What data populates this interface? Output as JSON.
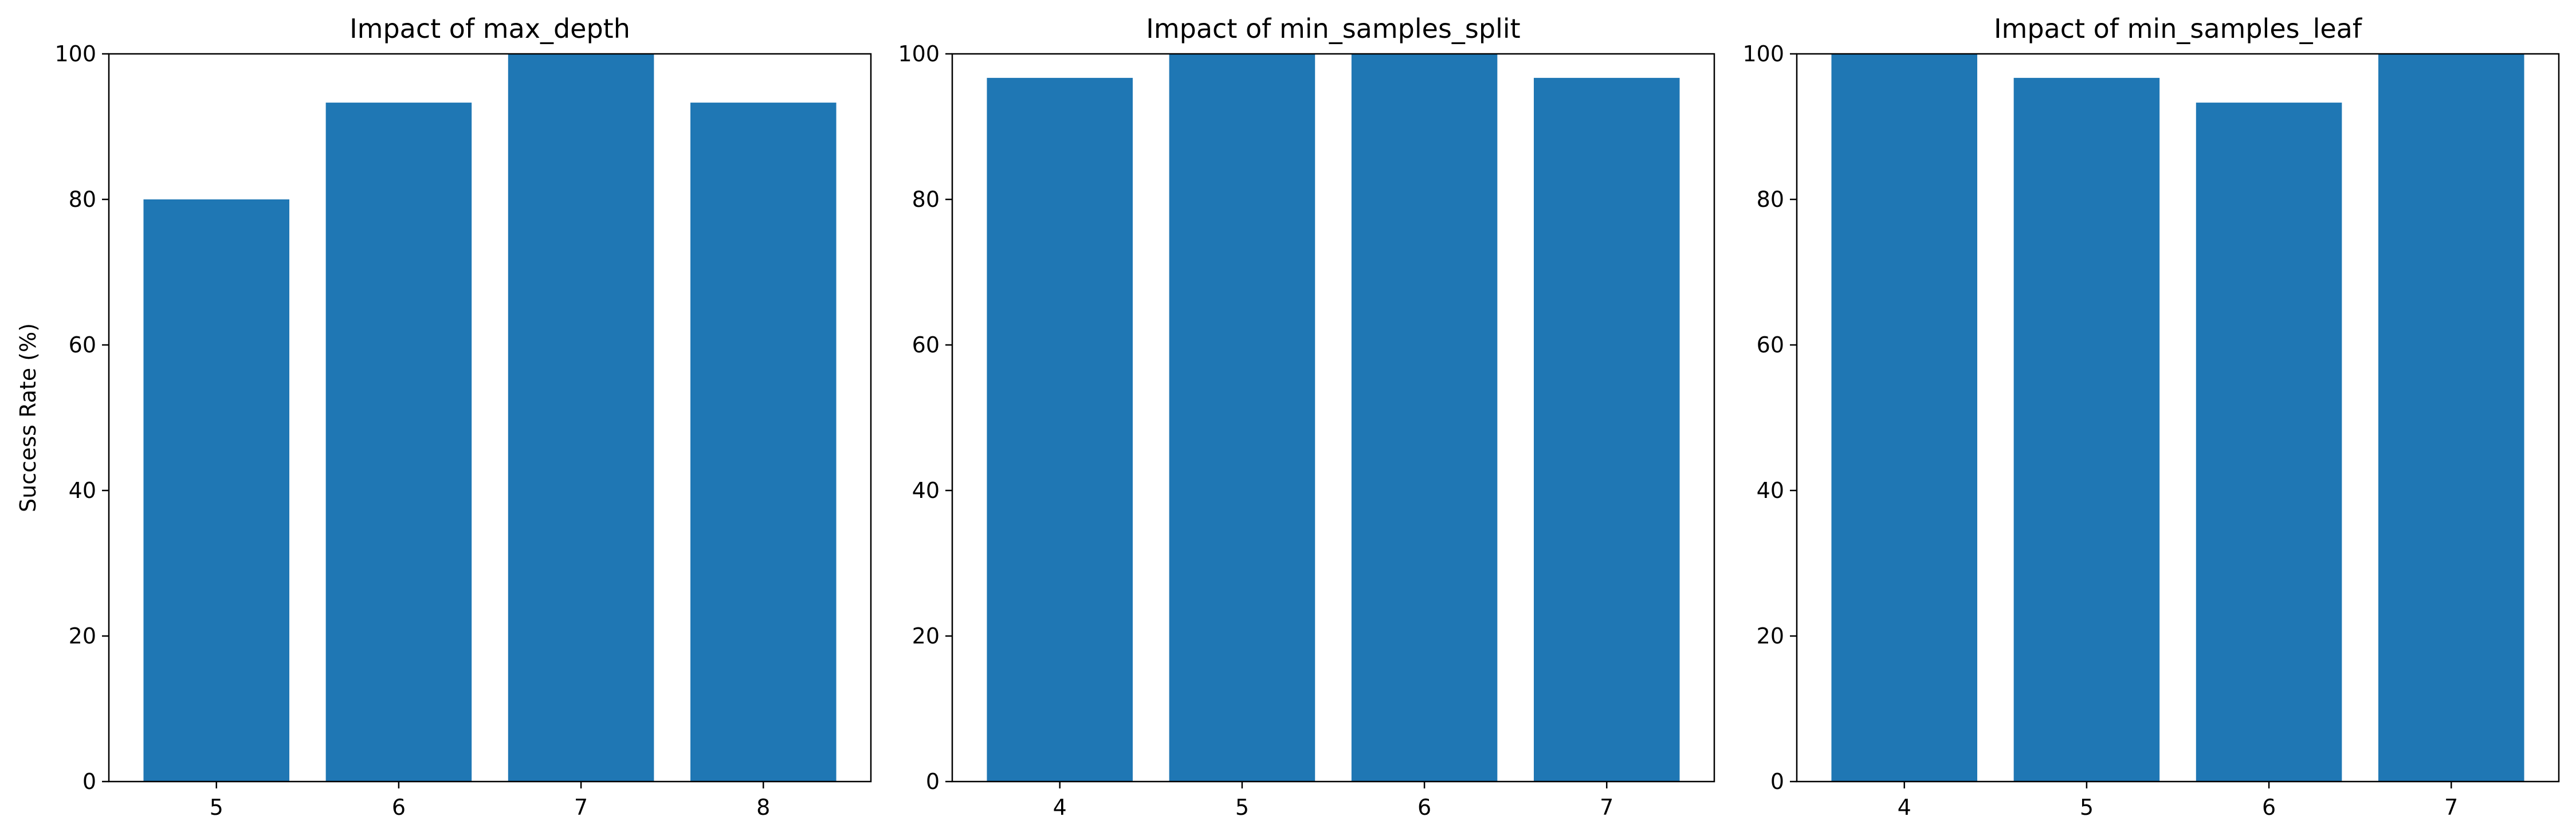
{
  "chart_data": [
    {
      "type": "bar",
      "title": "Impact of max_depth",
      "xlabel": "",
      "ylabel": "Success Rate (%)",
      "categories": [
        "5",
        "6",
        "7",
        "8"
      ],
      "values": [
        80,
        93.3,
        100,
        93.3
      ],
      "ylim": [
        0,
        100
      ],
      "yticks": [
        0,
        20,
        40,
        60,
        80,
        100
      ],
      "color": "#1f77b4",
      "grid": false
    },
    {
      "type": "bar",
      "title": "Impact of min_samples_split",
      "xlabel": "",
      "ylabel": "",
      "categories": [
        "4",
        "5",
        "6",
        "7"
      ],
      "values": [
        96.7,
        100,
        100,
        96.7
      ],
      "ylim": [
        0,
        100
      ],
      "yticks": [
        0,
        20,
        40,
        60,
        80,
        100
      ],
      "color": "#1f77b4",
      "grid": false
    },
    {
      "type": "bar",
      "title": "Impact of min_samples_leaf",
      "xlabel": "",
      "ylabel": "",
      "categories": [
        "4",
        "5",
        "6",
        "7"
      ],
      "values": [
        100,
        96.7,
        93.3,
        100
      ],
      "ylim": [
        0,
        100
      ],
      "yticks": [
        0,
        20,
        40,
        60,
        80,
        100
      ],
      "color": "#1f77b4",
      "grid": false
    }
  ]
}
